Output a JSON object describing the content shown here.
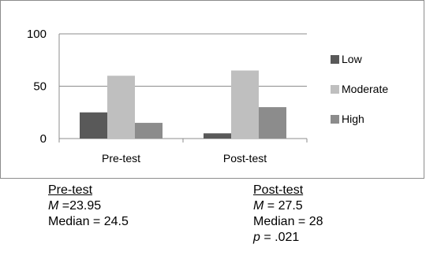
{
  "chart_data": {
    "type": "bar",
    "categories": [
      "Pre-test",
      "Post-test"
    ],
    "series": [
      {
        "name": "Low",
        "values": [
          25,
          5
        ],
        "color": "#595959"
      },
      {
        "name": "Moderate",
        "values": [
          60,
          65
        ],
        "color": "#bfbfbf"
      },
      {
        "name": "High",
        "values": [
          15,
          30
        ],
        "color": "#8c8c8c"
      }
    ],
    "y_ticks": [
      "0",
      "50",
      "100"
    ],
    "ylim": [
      0,
      100
    ],
    "grid": true,
    "legend_position": "right"
  },
  "stats": {
    "pre": {
      "heading": "Pre-test",
      "mean_symbol": "M",
      "mean_value": " =23.95",
      "median": "Median = 24.5"
    },
    "post": {
      "heading": "Post-test",
      "mean_symbol": "M",
      "mean_value": " = 27.5",
      "median": "Median = 28",
      "p_symbol": "p",
      "p_value": " = .021"
    }
  }
}
